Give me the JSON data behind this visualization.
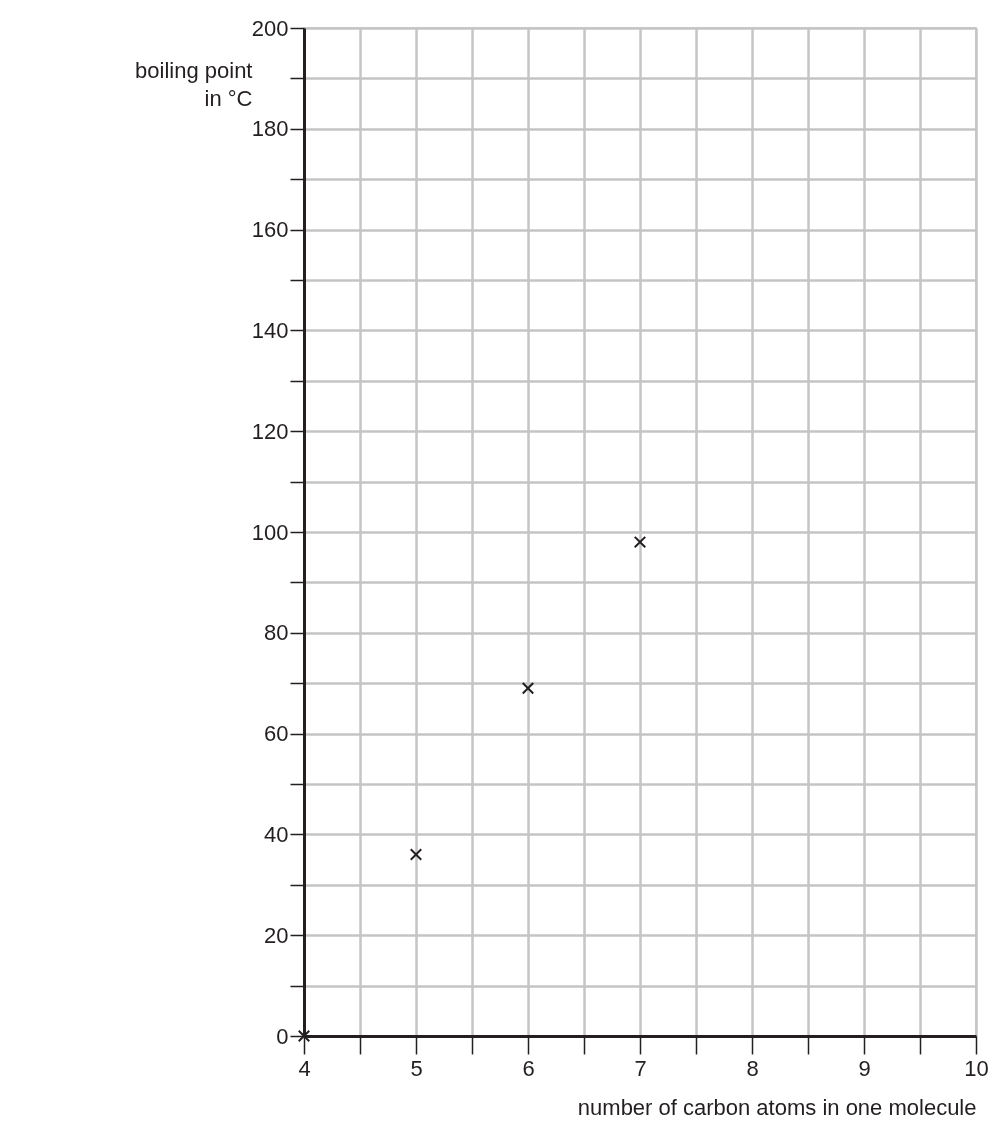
{
  "chart_data": {
    "type": "scatter",
    "xlabel": "number of carbon atoms in one molecule",
    "ylabel": "boiling point in °C",
    "x": [
      4,
      5,
      6,
      7
    ],
    "values": [
      0,
      36,
      69,
      98
    ],
    "color": "#231f20",
    "marker": "cross",
    "grid": true,
    "xlim": [
      4,
      10
    ],
    "xticks": [
      4,
      {
        "value": 4.5,
        "label": null
      },
      5,
      {
        "value": 5.5,
        "label": null
      },
      6,
      {
        "value": 6.5,
        "label": null
      },
      7,
      {
        "value": 7.5,
        "label": null
      },
      8,
      {
        "value": 8.5,
        "label": null
      },
      9,
      {
        "value": 9.5,
        "label": null
      },
      10
    ],
    "ylim": [
      0,
      200
    ],
    "yticks": [
      0,
      {
        "value": 10,
        "label": null
      },
      20,
      {
        "value": 30,
        "label": null
      },
      40,
      {
        "value": 50,
        "label": null
      },
      60,
      {
        "value": 70,
        "label": null
      },
      80,
      {
        "value": 90,
        "label": null
      },
      100,
      {
        "value": 110,
        "label": null
      },
      120,
      {
        "value": 130,
        "label": null
      },
      140,
      {
        "value": 150,
        "label": null
      },
      160,
      {
        "value": 170,
        "label": null
      },
      180,
      {
        "value": 190,
        "label": null
      },
      200
    ]
  }
}
